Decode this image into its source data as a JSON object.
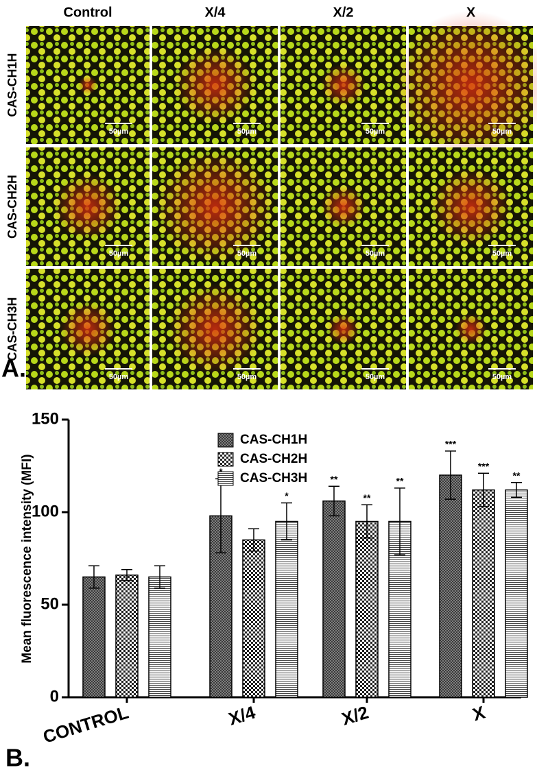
{
  "panel_a": {
    "label": "A.",
    "columns": [
      "Control",
      "X/4",
      "X/2",
      "X"
    ],
    "rows": [
      "CAS-CH1H",
      "CAS-CH2H",
      "CAS-CH3H"
    ],
    "scale_bar_label": "50µm"
  },
  "chart_data": {
    "type": "bar",
    "panel_label": "B.",
    "y_label": "Mean fluorescence intensity (MFI)",
    "categories": [
      "CONTROL",
      "X/4",
      "X/2",
      "X"
    ],
    "ylim": [
      0,
      150
    ],
    "yticks": [
      0,
      50,
      100,
      150
    ],
    "grid": false,
    "legend": "upper-left",
    "series": [
      {
        "name": "CAS-CH1H",
        "pattern": "crosshatch",
        "values": [
          65,
          98,
          106,
          120
        ],
        "errors": [
          6,
          20,
          8,
          13
        ],
        "significance": [
          null,
          "*",
          "**",
          "***"
        ]
      },
      {
        "name": "CAS-CH2H",
        "pattern": "checker",
        "values": [
          66,
          85,
          95,
          112
        ],
        "errors": [
          3,
          6,
          9,
          9
        ],
        "significance": [
          null,
          null,
          "**",
          "***"
        ]
      },
      {
        "name": "CAS-CH3H",
        "pattern": "hlines",
        "values": [
          65,
          95,
          95,
          112
        ],
        "errors": [
          6,
          10,
          18,
          4
        ],
        "significance": [
          null,
          "*",
          "**",
          "**"
        ]
      }
    ]
  }
}
